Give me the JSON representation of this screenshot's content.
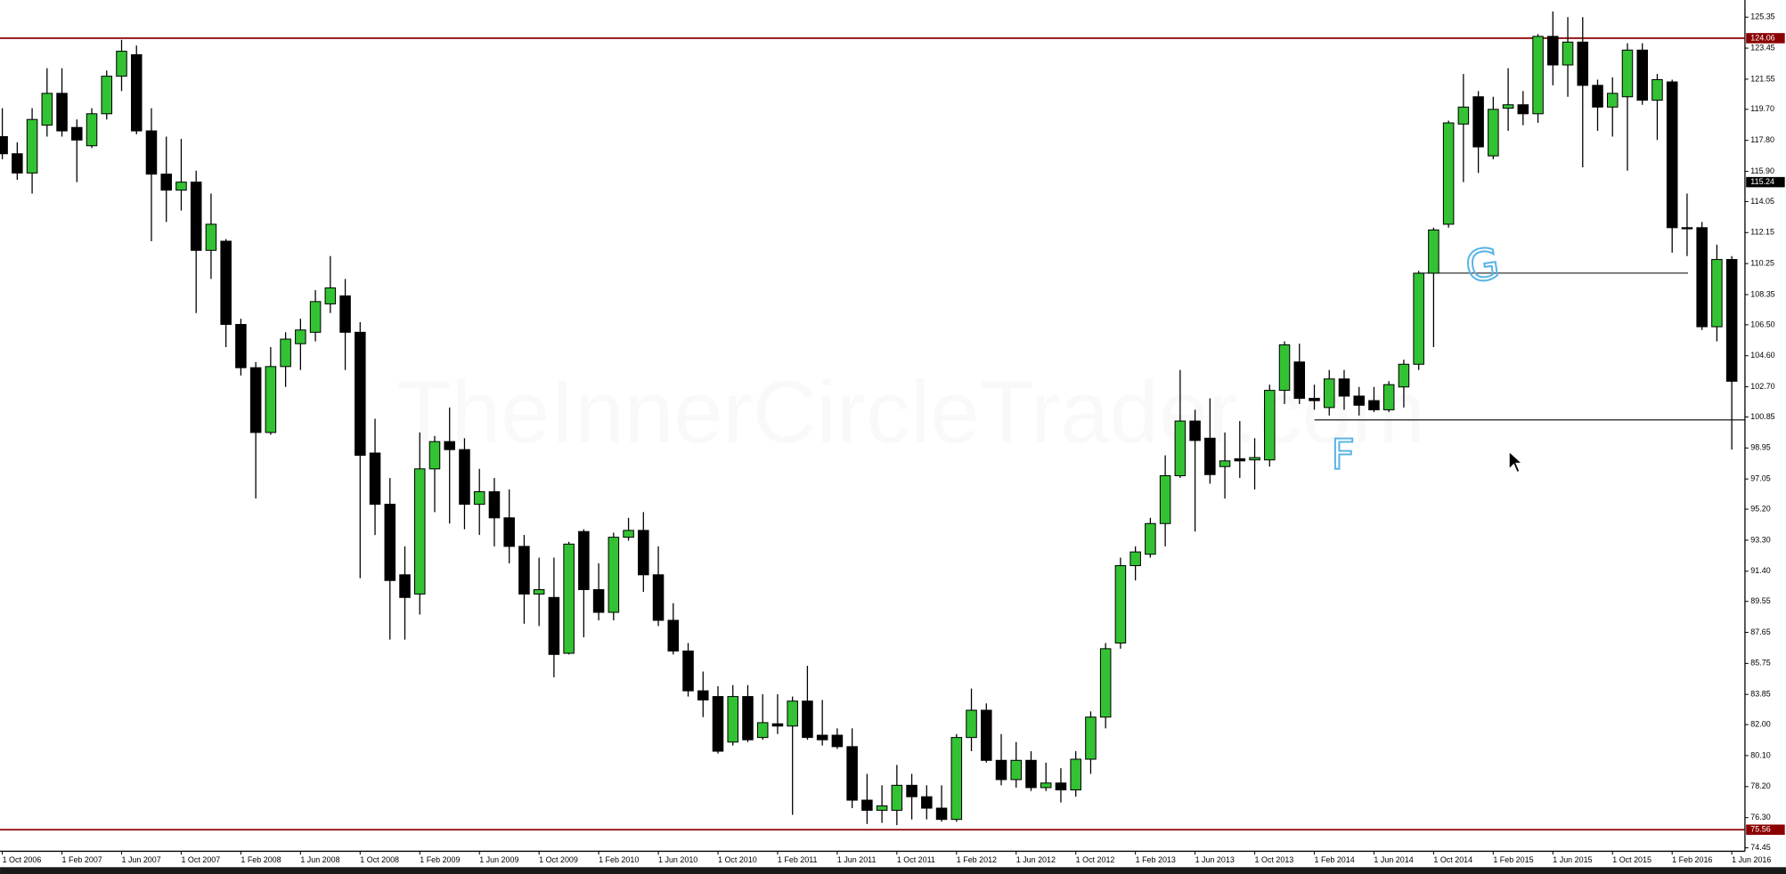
{
  "chart_data": {
    "type": "candlestick",
    "watermark": "TheInnerCircleTrader.com",
    "annotations": [
      "G",
      "F"
    ],
    "up_color": "#33c233",
    "down_color": "#000000",
    "level_color": "#8b0000",
    "levels": [
      124.06,
      75.56
    ],
    "current_price": 115.24,
    "ylim": [
      74.24,
      126.4
    ],
    "yticks": [
      125.35,
      123.45,
      121.55,
      {
        "value": 119.7,
        "label": "119.70"
      },
      {
        "value": 117.8,
        "label": "117.80"
      },
      {
        "value": 115.9,
        "label": "115.90"
      },
      114.05,
      112.15,
      {
        "value": 110.25,
        "label": "110.25"
      },
      108.35,
      {
        "value": 106.5,
        "label": "106.50"
      },
      {
        "value": 104.6,
        "label": "104.60"
      },
      {
        "value": 102.7,
        "label": "102.70"
      },
      100.85,
      98.95,
      97.05,
      {
        "value": 95.2,
        "label": "95.20"
      },
      {
        "value": 93.3,
        "label": "93.30"
      },
      {
        "value": 91.4,
        "label": "91.40"
      },
      89.55,
      87.65,
      85.75,
      83.85,
      {
        "value": 82.0,
        "label": "82.00"
      },
      {
        "value": 80.1,
        "label": "80.10"
      },
      {
        "value": 78.2,
        "label": "78.20"
      },
      {
        "value": 76.3,
        "label": "76.30"
      },
      74.45
    ],
    "categories": [
      "1 Oct 2006",
      null,
      null,
      null,
      "1 Feb 2007",
      null,
      null,
      null,
      "1 Jun 2007",
      null,
      null,
      null,
      "1 Oct 2007",
      null,
      null,
      null,
      "1 Feb 2008",
      null,
      null,
      null,
      "1 Jun 2008",
      null,
      null,
      null,
      "1 Oct 2008",
      null,
      null,
      null,
      "1 Feb 2009",
      null,
      null,
      null,
      "1 Jun 2009",
      null,
      null,
      null,
      "1 Oct 2009",
      null,
      null,
      null,
      "1 Feb 2010",
      null,
      null,
      null,
      "1 Jun 2010",
      null,
      null,
      null,
      "1 Oct 2010",
      null,
      null,
      null,
      "1 Feb 2011",
      null,
      null,
      null,
      "1 Jun 2011",
      null,
      null,
      null,
      "1 Oct 2011",
      null,
      null,
      null,
      "1 Feb 2012",
      null,
      null,
      null,
      "1 Jun 2012",
      null,
      null,
      null,
      "1 Oct 2012",
      null,
      null,
      null,
      "1 Feb 2013",
      null,
      null,
      null,
      "1 Jun 2013",
      null,
      null,
      null,
      "1 Oct 2013",
      null,
      null,
      null,
      "1 Feb 2014",
      null,
      null,
      null,
      "1 Jun 2014",
      null,
      null,
      null,
      "1 Oct 2014",
      null,
      null,
      null,
      "1 Feb 2015",
      null,
      null,
      null,
      "1 Jun 2015",
      null,
      null,
      null,
      "1 Oct 2015",
      null,
      null,
      null,
      "1 Feb 2016",
      null,
      null,
      null,
      "1 Jun 2016"
    ],
    "open": [
      118.03,
      116.98,
      115.8,
      118.73,
      120.68,
      118.59,
      117.47,
      119.43,
      121.73,
      123.05,
      118.38,
      115.73,
      114.75,
      115.24,
      111.06,
      111.62,
      106.52,
      103.87,
      99.9,
      103.94,
      105.34,
      106.04,
      107.78,
      108.27,
      106.04,
      98.64,
      95.5,
      91.18,
      90.0,
      97.67,
      99.34,
      98.85,
      95.5,
      96.27,
      94.67,
      92.92,
      90.0,
      89.79,
      86.37,
      93.83,
      90.27,
      88.88,
      93.48,
      93.9,
      91.18,
      88.39,
      86.51,
      84.07,
      83.72,
      80.93,
      83.72,
      81.21,
      82.05,
      81.91,
      83.44,
      81.35,
      81.35,
      80.65,
      77.37,
      76.75,
      76.75,
      78.28,
      77.58,
      76.88,
      76.19,
      81.21,
      82.88,
      79.81,
      78.63,
      79.81,
      78.14,
      78.42,
      78.0,
      79.88,
      82.46,
      87.0,
      91.74,
      92.44,
      94.32,
      97.25,
      100.6,
      99.55,
      97.81,
      98.29,
      98.22,
      98.22,
      102.48,
      104.22,
      101.99,
      101.43,
      103.18,
      102.13,
      101.85,
      101.29,
      102.69,
      104.08,
      109.66,
      112.66,
      118.8,
      120.47,
      116.85,
      119.77,
      119.98,
      119.43,
      124.17,
      122.42,
      123.82,
      121.17,
      119.84,
      120.47,
      123.33,
      120.26,
      121.38,
      112.45,
      112.45,
      106.38,
      110.5
    ],
    "high": [
      119.77,
      117.68,
      119.77,
      122.22,
      122.22,
      119.08,
      119.77,
      122.08,
      123.96,
      123.61,
      119.77,
      118.03,
      117.89,
      115.94,
      114.54,
      111.75,
      106.87,
      104.22,
      105.13,
      106.04,
      106.87,
      108.62,
      110.71,
      109.31,
      106.66,
      100.74,
      97.11,
      92.92,
      99.9,
      99.69,
      101.43,
      99.55,
      97.67,
      97.11,
      96.41,
      93.62,
      92.23,
      92.23,
      93.2,
      93.97,
      91.88,
      93.76,
      94.67,
      95.02,
      92.92,
      89.44,
      87.0,
      85.25,
      84.35,
      84.42,
      84.42,
      83.86,
      83.86,
      83.72,
      85.6,
      83.51,
      81.77,
      81.77,
      78.98,
      78.28,
      79.53,
      78.98,
      78.28,
      78.28,
      81.42,
      84.21,
      83.3,
      81.42,
      80.93,
      80.37,
      79.67,
      79.33,
      80.37,
      82.81,
      87.0,
      92.23,
      92.92,
      94.67,
      98.5,
      103.73,
      101.29,
      101.99,
      99.9,
      100.6,
      99.55,
      102.83,
      105.48,
      105.34,
      102.83,
      103.73,
      103.73,
      102.69,
      102.69,
      103.04,
      104.36,
      109.8,
      112.45,
      119.01,
      121.87,
      120.82,
      120.47,
      122.22,
      120.82,
      124.31,
      125.7,
      125.35,
      125.35,
      121.52,
      121.66,
      123.75,
      123.75,
      121.87,
      121.52,
      114.54,
      112.8,
      111.41,
      110.71
    ],
    "low": [
      116.64,
      115.38,
      114.54,
      118.03,
      118.03,
      115.24,
      117.33,
      119.08,
      120.82,
      118.17,
      111.62,
      112.8,
      113.5,
      107.22,
      109.31,
      105.13,
      103.39,
      95.85,
      99.76,
      102.69,
      103.73,
      105.48,
      107.22,
      103.73,
      90.97,
      93.62,
      87.21,
      87.21,
      88.74,
      95.02,
      94.32,
      93.97,
      93.62,
      92.92,
      91.88,
      88.18,
      88.04,
      84.9,
      86.3,
      87.35,
      88.39,
      88.39,
      93.27,
      90.13,
      88.04,
      86.3,
      83.72,
      82.46,
      80.23,
      80.72,
      80.93,
      81.07,
      81.42,
      76.47,
      81.07,
      80.72,
      80.51,
      76.88,
      75.91,
      75.98,
      75.84,
      76.19,
      76.19,
      76.05,
      76.05,
      80.37,
      79.67,
      78.28,
      78.14,
      77.93,
      77.93,
      77.23,
      77.58,
      78.98,
      81.77,
      86.65,
      90.83,
      92.23,
      92.92,
      97.11,
      93.83,
      96.76,
      95.85,
      97.11,
      96.41,
      97.81,
      101.64,
      101.64,
      101.29,
      100.94,
      101.29,
      100.94,
      101.15,
      101.15,
      101.43,
      103.73,
      105.13,
      112.45,
      115.24,
      115.8,
      116.64,
      118.38,
      118.73,
      118.87,
      121.17,
      120.47,
      116.15,
      118.38,
      118.03,
      115.94,
      119.98,
      117.82,
      110.92,
      110.71,
      106.18,
      105.48,
      98.85
    ],
    "close": [
      116.98,
      115.8,
      119.08,
      120.68,
      118.38,
      117.82,
      119.43,
      121.73,
      123.26,
      118.38,
      115.73,
      114.75,
      115.24,
      111.06,
      112.66,
      106.52,
      103.87,
      99.9,
      103.94,
      105.62,
      106.18,
      107.92,
      108.76,
      106.04,
      98.5,
      95.5,
      90.83,
      89.79,
      97.67,
      99.34,
      98.85,
      95.5,
      96.27,
      94.67,
      92.92,
      90.0,
      90.27,
      86.3,
      93.06,
      90.27,
      88.88,
      93.48,
      93.9,
      91.18,
      88.39,
      86.51,
      84.07,
      83.51,
      80.37,
      83.72,
      81.07,
      82.12,
      81.91,
      83.44,
      81.21,
      81.07,
      80.65,
      77.37,
      76.75,
      77.02,
      78.28,
      77.58,
      76.88,
      76.19,
      81.21,
      82.88,
      79.81,
      78.63,
      79.81,
      78.14,
      78.42,
      78.0,
      79.88,
      82.46,
      86.65,
      91.74,
      92.58,
      94.32,
      97.25,
      100.6,
      99.41,
      97.32,
      98.16,
      98.16,
      98.36,
      102.48,
      105.27,
      101.99,
      101.85,
      103.18,
      102.13,
      101.57,
      101.29,
      102.83,
      104.08,
      109.66,
      112.31,
      118.87,
      119.84,
      117.4,
      119.7,
      119.98,
      119.43,
      124.17,
      122.42,
      123.82,
      121.17,
      119.84,
      120.68,
      123.33,
      120.26,
      121.52,
      112.45,
      112.38,
      106.38,
      110.5,
      103.04
    ]
  }
}
